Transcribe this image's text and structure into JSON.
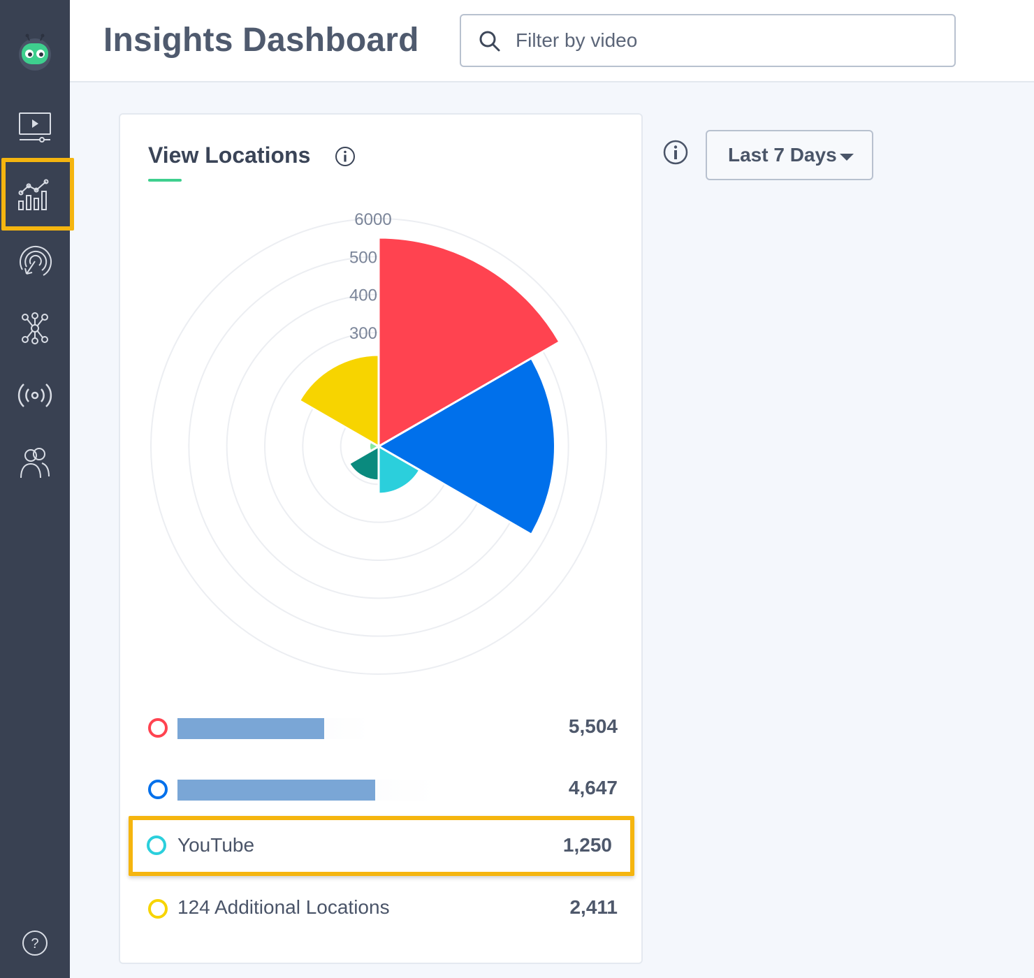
{
  "app": {
    "title": "Insights Dashboard"
  },
  "search": {
    "placeholder": "Filter by video"
  },
  "sidebar": {
    "items": [
      {
        "name": "videos",
        "icon": "video-player-icon"
      },
      {
        "name": "analytics",
        "icon": "analytics-chart-icon",
        "active": true
      },
      {
        "name": "engagement",
        "icon": "target-touch-icon"
      },
      {
        "name": "integrations",
        "icon": "network-hub-icon"
      },
      {
        "name": "live",
        "icon": "broadcast-icon"
      },
      {
        "name": "team",
        "icon": "users-icon"
      }
    ],
    "help_icon": "help-icon"
  },
  "controls": {
    "date_range": "Last 7 Days"
  },
  "card": {
    "title": "View Locations"
  },
  "colors": {
    "red": "#ff4350",
    "blue": "#0070eb",
    "cyan": "#2bcfdc",
    "teal": "#0a8a7e",
    "green": "#86e8a4",
    "yellow": "#f7d400",
    "highlight": "#f5b50f",
    "sidebar": "#394152"
  },
  "chart_data": {
    "type": "polar-area",
    "radial_axis": {
      "min": 0,
      "max": 6000,
      "ticks": [
        0,
        1000,
        2000,
        3000,
        4000,
        5000,
        6000
      ],
      "visible_tick_labels": [
        "6000",
        "500",
        "400",
        "300"
      ]
    },
    "segments": [
      {
        "label": "",
        "value": 5504,
        "color": "#ff4350"
      },
      {
        "label": "",
        "value": 4647,
        "color": "#0070eb"
      },
      {
        "label": "YouTube",
        "value": 1250,
        "color": "#2bcfdc"
      },
      {
        "label": "",
        "value": 900,
        "color": "#0a8a7e"
      },
      {
        "label": "",
        "value": 250,
        "color": "#86e8a4"
      },
      {
        "label": "124 Additional Locations",
        "value": 2411,
        "color": "#f7d400"
      }
    ]
  },
  "legend": [
    {
      "color": "#ff4350",
      "label": "",
      "value": "5,504",
      "bar_fraction": 0.76,
      "track_fraction": 1.0
    },
    {
      "color": "#0070eb",
      "label": "",
      "value": "4,647",
      "bar_fraction": 0.76,
      "track_fraction": 1.0
    },
    {
      "color": "#2bcfdc",
      "label": "YouTube",
      "value": "1,250"
    },
    {
      "color": "#f7d400",
      "label": "124 Additional Locations",
      "value": "2,411"
    }
  ]
}
